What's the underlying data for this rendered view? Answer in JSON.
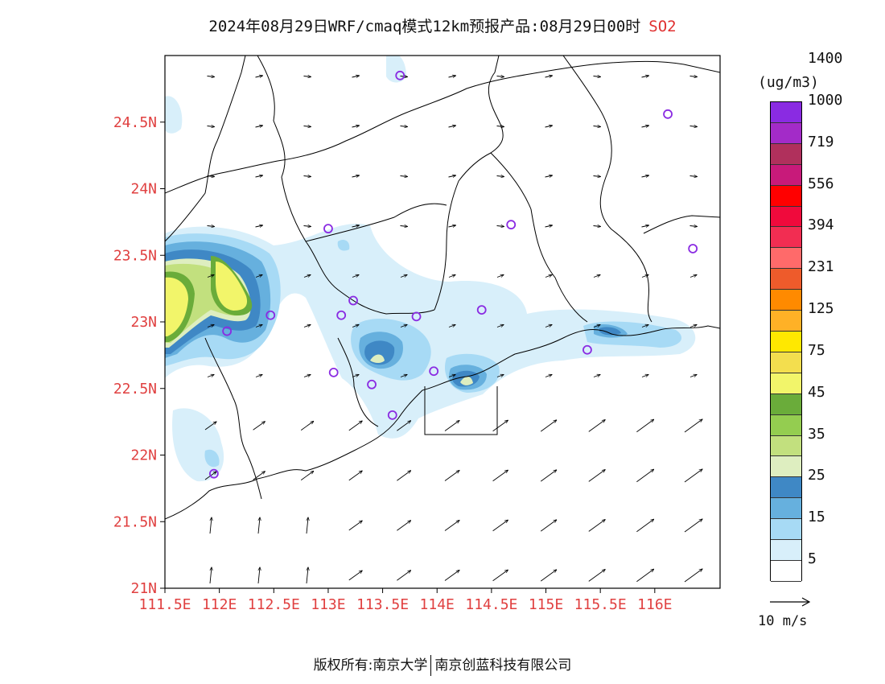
{
  "title": {
    "main": "2024年08月29日WRF/cmaq模式12km预报产品:08月29日00时",
    "species": "SO2"
  },
  "map": {
    "lat_labels": [
      "24.5N",
      "24N",
      "23.5N",
      "23N",
      "22.5N",
      "22N",
      "21.5N",
      "21N"
    ],
    "lon_labels": [
      "111.5E",
      "112E",
      "112.5E",
      "113E",
      "113.5E",
      "114E",
      "114.5E",
      "115E",
      "115.5E",
      "116E"
    ],
    "lat_range": [
      21.0,
      25.0
    ],
    "lon_range": [
      111.5,
      116.6
    ],
    "stations": [
      {
        "lon": 113.66,
        "lat": 24.85
      },
      {
        "lon": 116.12,
        "lat": 24.56
      },
      {
        "lon": 113.0,
        "lat": 23.7
      },
      {
        "lon": 114.68,
        "lat": 23.73
      },
      {
        "lon": 116.35,
        "lat": 23.55
      },
      {
        "lon": 113.23,
        "lat": 23.16
      },
      {
        "lon": 113.12,
        "lat": 23.05
      },
      {
        "lon": 113.81,
        "lat": 23.04
      },
      {
        "lon": 114.41,
        "lat": 23.09
      },
      {
        "lon": 112.47,
        "lat": 23.05
      },
      {
        "lon": 112.07,
        "lat": 22.93
      },
      {
        "lon": 115.38,
        "lat": 22.79
      },
      {
        "lon": 113.05,
        "lat": 22.62
      },
      {
        "lon": 113.97,
        "lat": 22.63
      },
      {
        "lon": 113.4,
        "lat": 22.53
      },
      {
        "lon": 113.59,
        "lat": 22.3
      },
      {
        "lon": 111.95,
        "lat": 21.86
      }
    ],
    "station_color": "#8a2be2",
    "wind_note": "wind vectors"
  },
  "legend": {
    "unit": "(ug/m3)",
    "colors": [
      "#ffffff",
      "#d8effa",
      "#a7daf5",
      "#66b0de",
      "#3f88c5",
      "#deeec0",
      "#c2e07e",
      "#94cd50",
      "#6aac3a",
      "#f2f56a",
      "#f3de4e",
      "#ffe800",
      "#ffb126",
      "#ff8a00",
      "#ee5b2b",
      "#ff6a6a",
      "#f22d52",
      "#f00a3c",
      "#ff0000",
      "#c81a7a",
      "#b0305c",
      "#a32bc8",
      "#8a2be2"
    ],
    "labels": [
      "5",
      "15",
      "25",
      "35",
      "45",
      "75",
      "125",
      "231",
      "394",
      "556",
      "719",
      "1000",
      "1400"
    ]
  },
  "wind_scale": {
    "label": "10 m/s"
  },
  "footer": {
    "left": "版权所有:南京大学",
    "right": "南京创蓝科技有限公司"
  }
}
